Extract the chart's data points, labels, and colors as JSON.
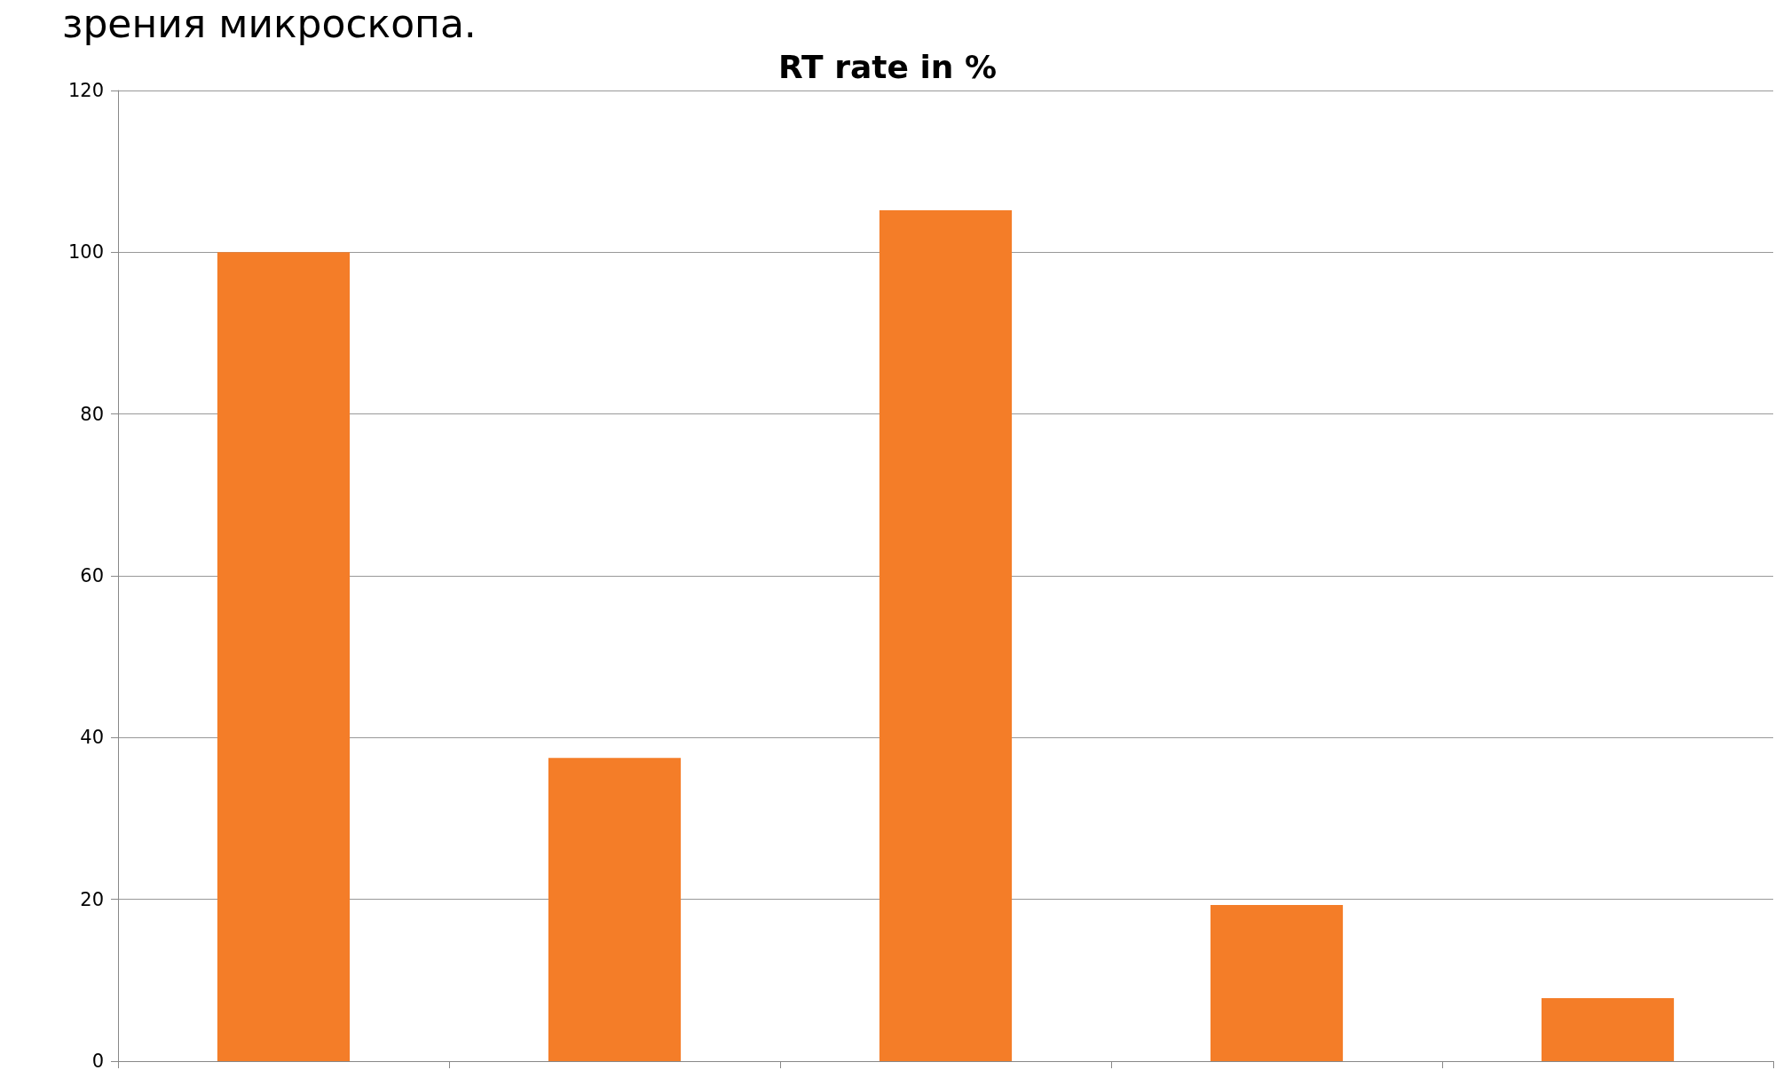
{
  "chart_data": {
    "type": "bar",
    "title": "RT rate in %",
    "annotations": [
      "зрения микроскопа."
    ],
    "categories": [
      null,
      null,
      null,
      null,
      null
    ],
    "values": [
      100,
      37.5,
      105.2,
      19.3,
      7.8
    ],
    "color": "#f47d28",
    "ylim": [
      0,
      120
    ],
    "yticks": [
      0,
      20,
      40,
      60,
      80,
      100,
      120
    ],
    "grid": "y"
  }
}
